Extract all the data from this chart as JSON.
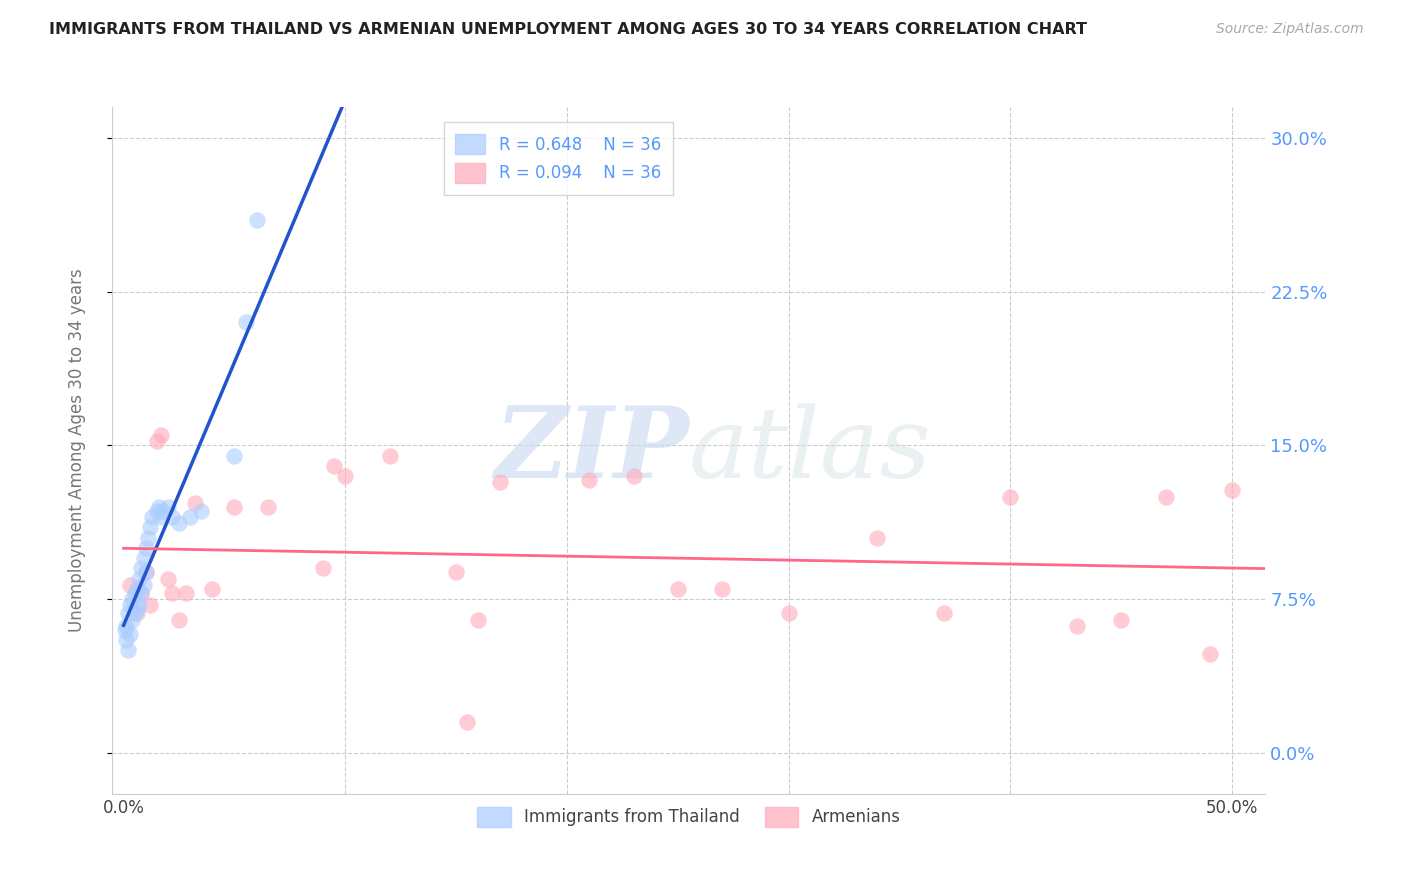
{
  "title": "IMMIGRANTS FROM THAILAND VS ARMENIAN UNEMPLOYMENT AMONG AGES 30 TO 34 YEARS CORRELATION CHART",
  "source": "Source: ZipAtlas.com",
  "ylabel": "Unemployment Among Ages 30 to 34 years",
  "ytick_values": [
    0.0,
    0.075,
    0.15,
    0.225,
    0.3
  ],
  "ytick_labels": [
    "0.0%",
    "7.5%",
    "15.0%",
    "22.5%",
    "30.0%"
  ],
  "xtick_values": [
    0.0,
    0.1,
    0.2,
    0.3,
    0.4,
    0.5
  ],
  "xtick_labels": [
    "0.0%",
    "",
    "",
    "",
    "",
    "50.0%"
  ],
  "xlim": [
    -0.005,
    0.515
  ],
  "ylim": [
    -0.02,
    0.315
  ],
  "legend_blue_r": "R = 0.648",
  "legend_blue_n": "N = 36",
  "legend_pink_r": "R = 0.094",
  "legend_pink_n": "N = 36",
  "legend_label_blue": "Immigrants from Thailand",
  "legend_label_pink": "Armenians",
  "blue_fill": "#aaccff",
  "pink_fill": "#ffaabb",
  "line_blue": "#2255cc",
  "line_pink": "#ff6688",
  "watermark_zip": "ZIP",
  "watermark_atlas": "atlas",
  "background_color": "#ffffff",
  "grid_color": "#cccccc",
  "title_color": "#222222",
  "ylabel_color": "#777777",
  "ytick_right_color": "#5599ff",
  "thailand_x": [
    0.0005,
    0.001,
    0.001,
    0.002,
    0.002,
    0.003,
    0.003,
    0.004,
    0.004,
    0.005,
    0.005,
    0.006,
    0.006,
    0.007,
    0.007,
    0.008,
    0.008,
    0.009,
    0.009,
    0.01,
    0.01,
    0.011,
    0.012,
    0.013,
    0.015,
    0.016,
    0.017,
    0.018,
    0.02,
    0.022,
    0.025,
    0.03,
    0.035,
    0.05,
    0.055,
    0.06
  ],
  "thailand_y": [
    0.06,
    0.062,
    0.055,
    0.068,
    0.05,
    0.072,
    0.058,
    0.075,
    0.065,
    0.078,
    0.068,
    0.08,
    0.07,
    0.085,
    0.072,
    0.09,
    0.078,
    0.095,
    0.082,
    0.1,
    0.088,
    0.105,
    0.11,
    0.115,
    0.118,
    0.12,
    0.115,
    0.118,
    0.12,
    0.115,
    0.112,
    0.115,
    0.118,
    0.145,
    0.21,
    0.26
  ],
  "armenian_x": [
    0.003,
    0.006,
    0.008,
    0.01,
    0.012,
    0.015,
    0.017,
    0.02,
    0.022,
    0.025,
    0.028,
    0.032,
    0.04,
    0.05,
    0.065,
    0.09,
    0.12,
    0.15,
    0.17,
    0.21,
    0.23,
    0.25,
    0.27,
    0.3,
    0.34,
    0.37,
    0.4,
    0.43,
    0.45,
    0.47,
    0.49,
    0.5,
    0.155,
    0.16,
    0.095,
    0.1
  ],
  "armenian_y": [
    0.082,
    0.068,
    0.078,
    0.088,
    0.072,
    0.152,
    0.155,
    0.085,
    0.078,
    0.065,
    0.078,
    0.122,
    0.08,
    0.12,
    0.12,
    0.09,
    0.145,
    0.088,
    0.132,
    0.133,
    0.135,
    0.08,
    0.08,
    0.068,
    0.105,
    0.068,
    0.125,
    0.062,
    0.065,
    0.125,
    0.048,
    0.128,
    0.015,
    0.065,
    0.14,
    0.135
  ]
}
